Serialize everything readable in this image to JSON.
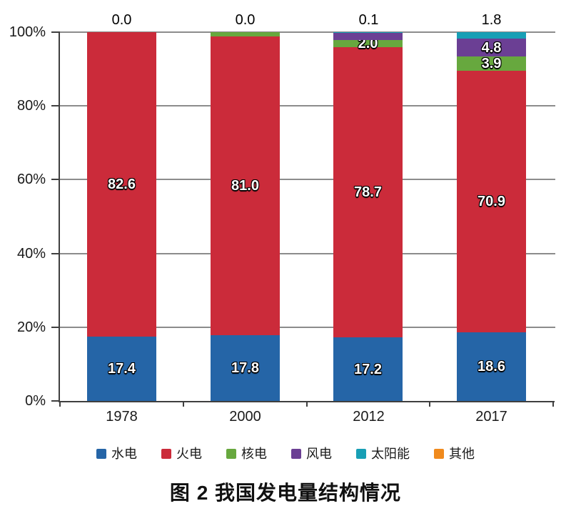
{
  "figure": {
    "caption": "图 2  我国发电量结构情况"
  },
  "chart_data": {
    "type": "bar",
    "variant": "stacked-percent",
    "title": "图 2  我国发电量结构情况",
    "categories": [
      "1978",
      "2000",
      "2012",
      "2017"
    ],
    "series": [
      {
        "key": "hydro",
        "name": "水电",
        "color": "#2565A7",
        "values": [
          17.4,
          17.8,
          17.2,
          18.6
        ],
        "bar_labels": [
          "17.4",
          "17.8",
          "17.2",
          "18.6"
        ]
      },
      {
        "key": "thermal",
        "name": "火电",
        "color": "#CB2B3A",
        "values": [
          82.6,
          81.0,
          78.7,
          70.9
        ],
        "bar_labels": [
          "82.6",
          "81.0",
          "78.7",
          "70.9"
        ]
      },
      {
        "key": "nuclear",
        "name": "核电",
        "color": "#67A83E",
        "values": [
          0.0,
          1.2,
          2.0,
          3.9
        ],
        "bar_labels": [
          null,
          null,
          "2.0",
          "3.9"
        ]
      },
      {
        "key": "wind",
        "name": "风电",
        "color": "#6B3F94",
        "values": [
          0.0,
          0.0,
          2.0,
          4.8
        ],
        "bar_labels": [
          null,
          null,
          null,
          "4.8"
        ]
      },
      {
        "key": "solar",
        "name": "太阳能",
        "color": "#189FB5",
        "values": [
          0.0,
          0.0,
          0.1,
          1.8
        ],
        "bar_labels": [
          null,
          null,
          null,
          null
        ]
      },
      {
        "key": "other",
        "name": "其他",
        "color": "#F08A1D",
        "values": [
          0.0,
          0.0,
          0.0,
          0.0
        ],
        "bar_labels": [
          null,
          null,
          null,
          null
        ]
      }
    ],
    "above_bar_labels": [
      "0.0",
      "0.0",
      "0.1",
      "1.8"
    ],
    "y_axis": {
      "ticks": [
        "0%",
        "20%",
        "40%",
        "60%",
        "80%",
        "100%"
      ],
      "min": 0,
      "max": 100
    },
    "grid": true,
    "legend_position": "bottom"
  }
}
